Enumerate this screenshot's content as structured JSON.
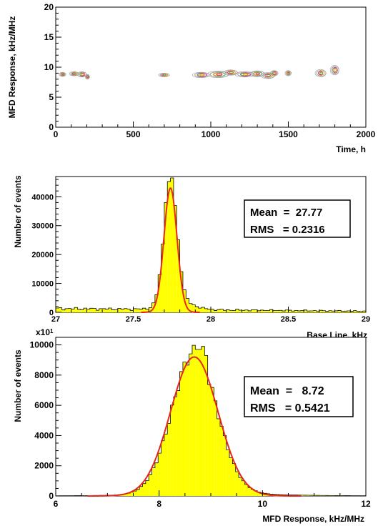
{
  "chart_data": [
    {
      "type": "scatter",
      "subtype": "contour",
      "xlabel": "Time, h",
      "ylabel": "MFD Response, kHz/MHz",
      "xlim": [
        0,
        2000
      ],
      "ylim": [
        0,
        20
      ],
      "xticks": [
        "0",
        "500",
        "1000",
        "1500",
        "2000"
      ],
      "yticks": [
        "0",
        "5",
        "10",
        "15",
        "20"
      ],
      "clusters": [
        {
          "x": 45,
          "y": 8.8,
          "wx": 22,
          "wy": 0.35
        },
        {
          "x": 120,
          "y": 8.9,
          "wx": 30,
          "wy": 0.35
        },
        {
          "x": 170,
          "y": 8.8,
          "wx": 30,
          "wy": 0.45
        },
        {
          "x": 205,
          "y": 8.4,
          "wx": 14,
          "wy": 0.4
        },
        {
          "x": 700,
          "y": 8.7,
          "wx": 35,
          "wy": 0.3
        },
        {
          "x": 940,
          "y": 8.7,
          "wx": 55,
          "wy": 0.45
        },
        {
          "x": 1050,
          "y": 8.8,
          "wx": 70,
          "wy": 0.55
        },
        {
          "x": 1130,
          "y": 9.1,
          "wx": 45,
          "wy": 0.45
        },
        {
          "x": 1220,
          "y": 8.8,
          "wx": 60,
          "wy": 0.45
        },
        {
          "x": 1300,
          "y": 8.9,
          "wx": 50,
          "wy": 0.5
        },
        {
          "x": 1370,
          "y": 8.6,
          "wx": 45,
          "wy": 0.5
        },
        {
          "x": 1410,
          "y": 9.0,
          "wx": 25,
          "wy": 0.45
        },
        {
          "x": 1500,
          "y": 9.0,
          "wx": 20,
          "wy": 0.45
        },
        {
          "x": 1710,
          "y": 9.0,
          "wx": 35,
          "wy": 0.6
        },
        {
          "x": 1800,
          "y": 9.5,
          "wx": 28,
          "wy": 0.8
        }
      ],
      "colors": [
        "#999999",
        "#4caf50",
        "#ff9900",
        "#d4267a"
      ]
    },
    {
      "type": "bar",
      "subtype": "histogram",
      "xlabel": "Base Line, kHz",
      "ylabel": "Number of events",
      "xlim": [
        27,
        29
      ],
      "ylim": [
        0,
        47000
      ],
      "xticks": [
        "27",
        "27.5",
        "28",
        "28.5",
        "29"
      ],
      "yticks": [
        "0",
        "10000",
        "20000",
        "30000",
        "40000"
      ],
      "fill": "#ffff00",
      "fit_color": "#e8261c",
      "stats": {
        "mean_label": "Mean  =  27.77",
        "rms_label": "RMS   = 0.2316"
      },
      "bins": {
        "start": 27.0,
        "width": 0.02,
        "count": 100
      },
      "fit": {
        "amplitude": 43000,
        "mean": 27.74,
        "sigma": 0.042
      },
      "background": {
        "left": 1300,
        "right": 400
      },
      "tail_amplitude": 2800,
      "tail_sigma": 0.09
    },
    {
      "type": "bar",
      "subtype": "histogram",
      "xlabel": "MFD Response, kHz/MHz",
      "ylabel": "Number of events",
      "multiplier_label": "x10",
      "multiplier_exp": "1",
      "xlim": [
        6,
        12
      ],
      "ylim": [
        0,
        10500
      ],
      "xticks": [
        "6",
        "8",
        "10",
        "12"
      ],
      "yticks": [
        "0",
        "2000",
        "4000",
        "6000",
        "8000",
        "10000"
      ],
      "fill": "#ffff00",
      "fit_color": "#e8261c",
      "stats": {
        "mean_label": "Mean  =   8.72",
        "rms_label": "RMS   = 0.5421"
      },
      "bins": {
        "start": 6.0,
        "width": 0.06,
        "count": 100
      },
      "fit": {
        "amplitude": 9200,
        "mean": 8.68,
        "sigma": 0.46
      },
      "peak_bins": [
        {
          "x": 8.76,
          "y": 9700
        },
        {
          "x": 8.82,
          "y": 9900
        },
        {
          "x": 8.88,
          "y": 9300
        }
      ]
    }
  ]
}
